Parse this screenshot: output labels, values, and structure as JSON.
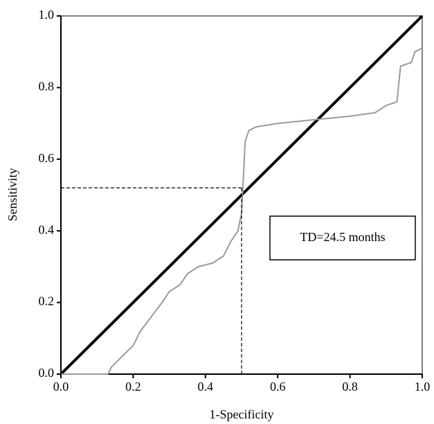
{
  "chart_data": {
    "type": "line",
    "xlabel": "1-Specificity",
    "ylabel": "Sensitivity",
    "xlim": [
      0,
      1
    ],
    "ylim": [
      0,
      1
    ],
    "xticks": [
      {
        "value": 0,
        "label": "0.0"
      },
      0.2,
      0.4,
      0.6,
      0.8,
      {
        "value": 1,
        "label": "1.0"
      }
    ],
    "yticks": [
      {
        "value": 0,
        "label": "0.0"
      },
      0.2,
      0.4,
      0.6,
      0.8,
      {
        "value": 1,
        "label": "1.0"
      }
    ],
    "series": [
      {
        "color": "#000000",
        "x": [
          0,
          1
        ],
        "values": [
          0,
          1
        ]
      },
      {
        "color": "#9a9a9a",
        "x": [
          0,
          0.13,
          0.14,
          0.16,
          0.18,
          0.2,
          0.22,
          0.25,
          0.28,
          0.3,
          0.33,
          0.35,
          0.38,
          0.42,
          0.45,
          0.47,
          0.49,
          0.5,
          0.505,
          0.51,
          0.52,
          0.54,
          0.6,
          0.7,
          0.8,
          0.87,
          0.9,
          0.93,
          0.94,
          0.97,
          0.98,
          1.0
        ],
        "values": [
          0,
          0,
          0.02,
          0.04,
          0.06,
          0.08,
          0.12,
          0.16,
          0.2,
          0.23,
          0.25,
          0.28,
          0.3,
          0.31,
          0.33,
          0.37,
          0.4,
          0.45,
          0.55,
          0.65,
          0.68,
          0.69,
          0.7,
          0.71,
          0.72,
          0.73,
          0.75,
          0.76,
          0.86,
          0.87,
          0.9,
          0.91
        ]
      }
    ],
    "cutoff": {
      "x": 0.5,
      "y": 0.52
    },
    "annotation": "TD=24.5 months"
  }
}
